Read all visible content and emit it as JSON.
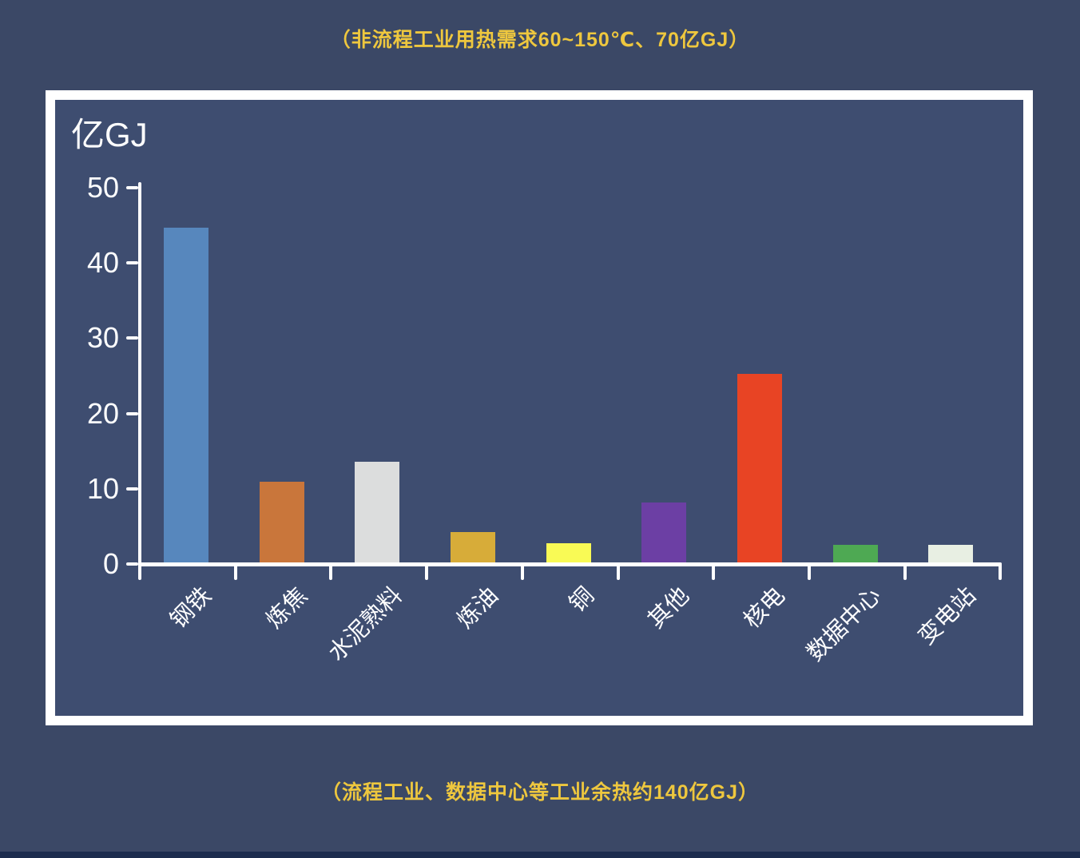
{
  "captions": {
    "top": "（非流程工业用热需求60~150℃、70亿GJ）",
    "bottom": "（流程工业、数据中心等工业余热约140亿GJ）"
  },
  "colors": {
    "page_bg": "#3b4866",
    "plot_bg": "#3e4d70",
    "frame_border": "#ffffff",
    "axis": "#ffffff",
    "tick_text": "#ffffff",
    "caption_text": "#eec73e",
    "bottom_strip": "#1c2c4e"
  },
  "chart_data": {
    "type": "bar",
    "title": "",
    "xlabel": "",
    "ylabel": "亿GJ",
    "categories": [
      "钢铁",
      "炼焦",
      "水泥熟料",
      "炼油",
      "铜",
      "其他",
      "核电",
      "数据中心",
      "变电站"
    ],
    "values": [
      44.5,
      10.7,
      13.4,
      4,
      2.5,
      8,
      25,
      2.3,
      2.3
    ],
    "bar_colors": [
      "#5787bd",
      "#c9763b",
      "#dcdddd",
      "#d7ac39",
      "#f9fa55",
      "#6c3fa4",
      "#e84424",
      "#4ea953",
      "#e8efe3"
    ],
    "ylim": [
      0,
      50
    ],
    "yticks": [
      0,
      10,
      20,
      30,
      40,
      50
    ],
    "grid": false,
    "legend": null,
    "tick_label_rotation_deg": 45
  }
}
